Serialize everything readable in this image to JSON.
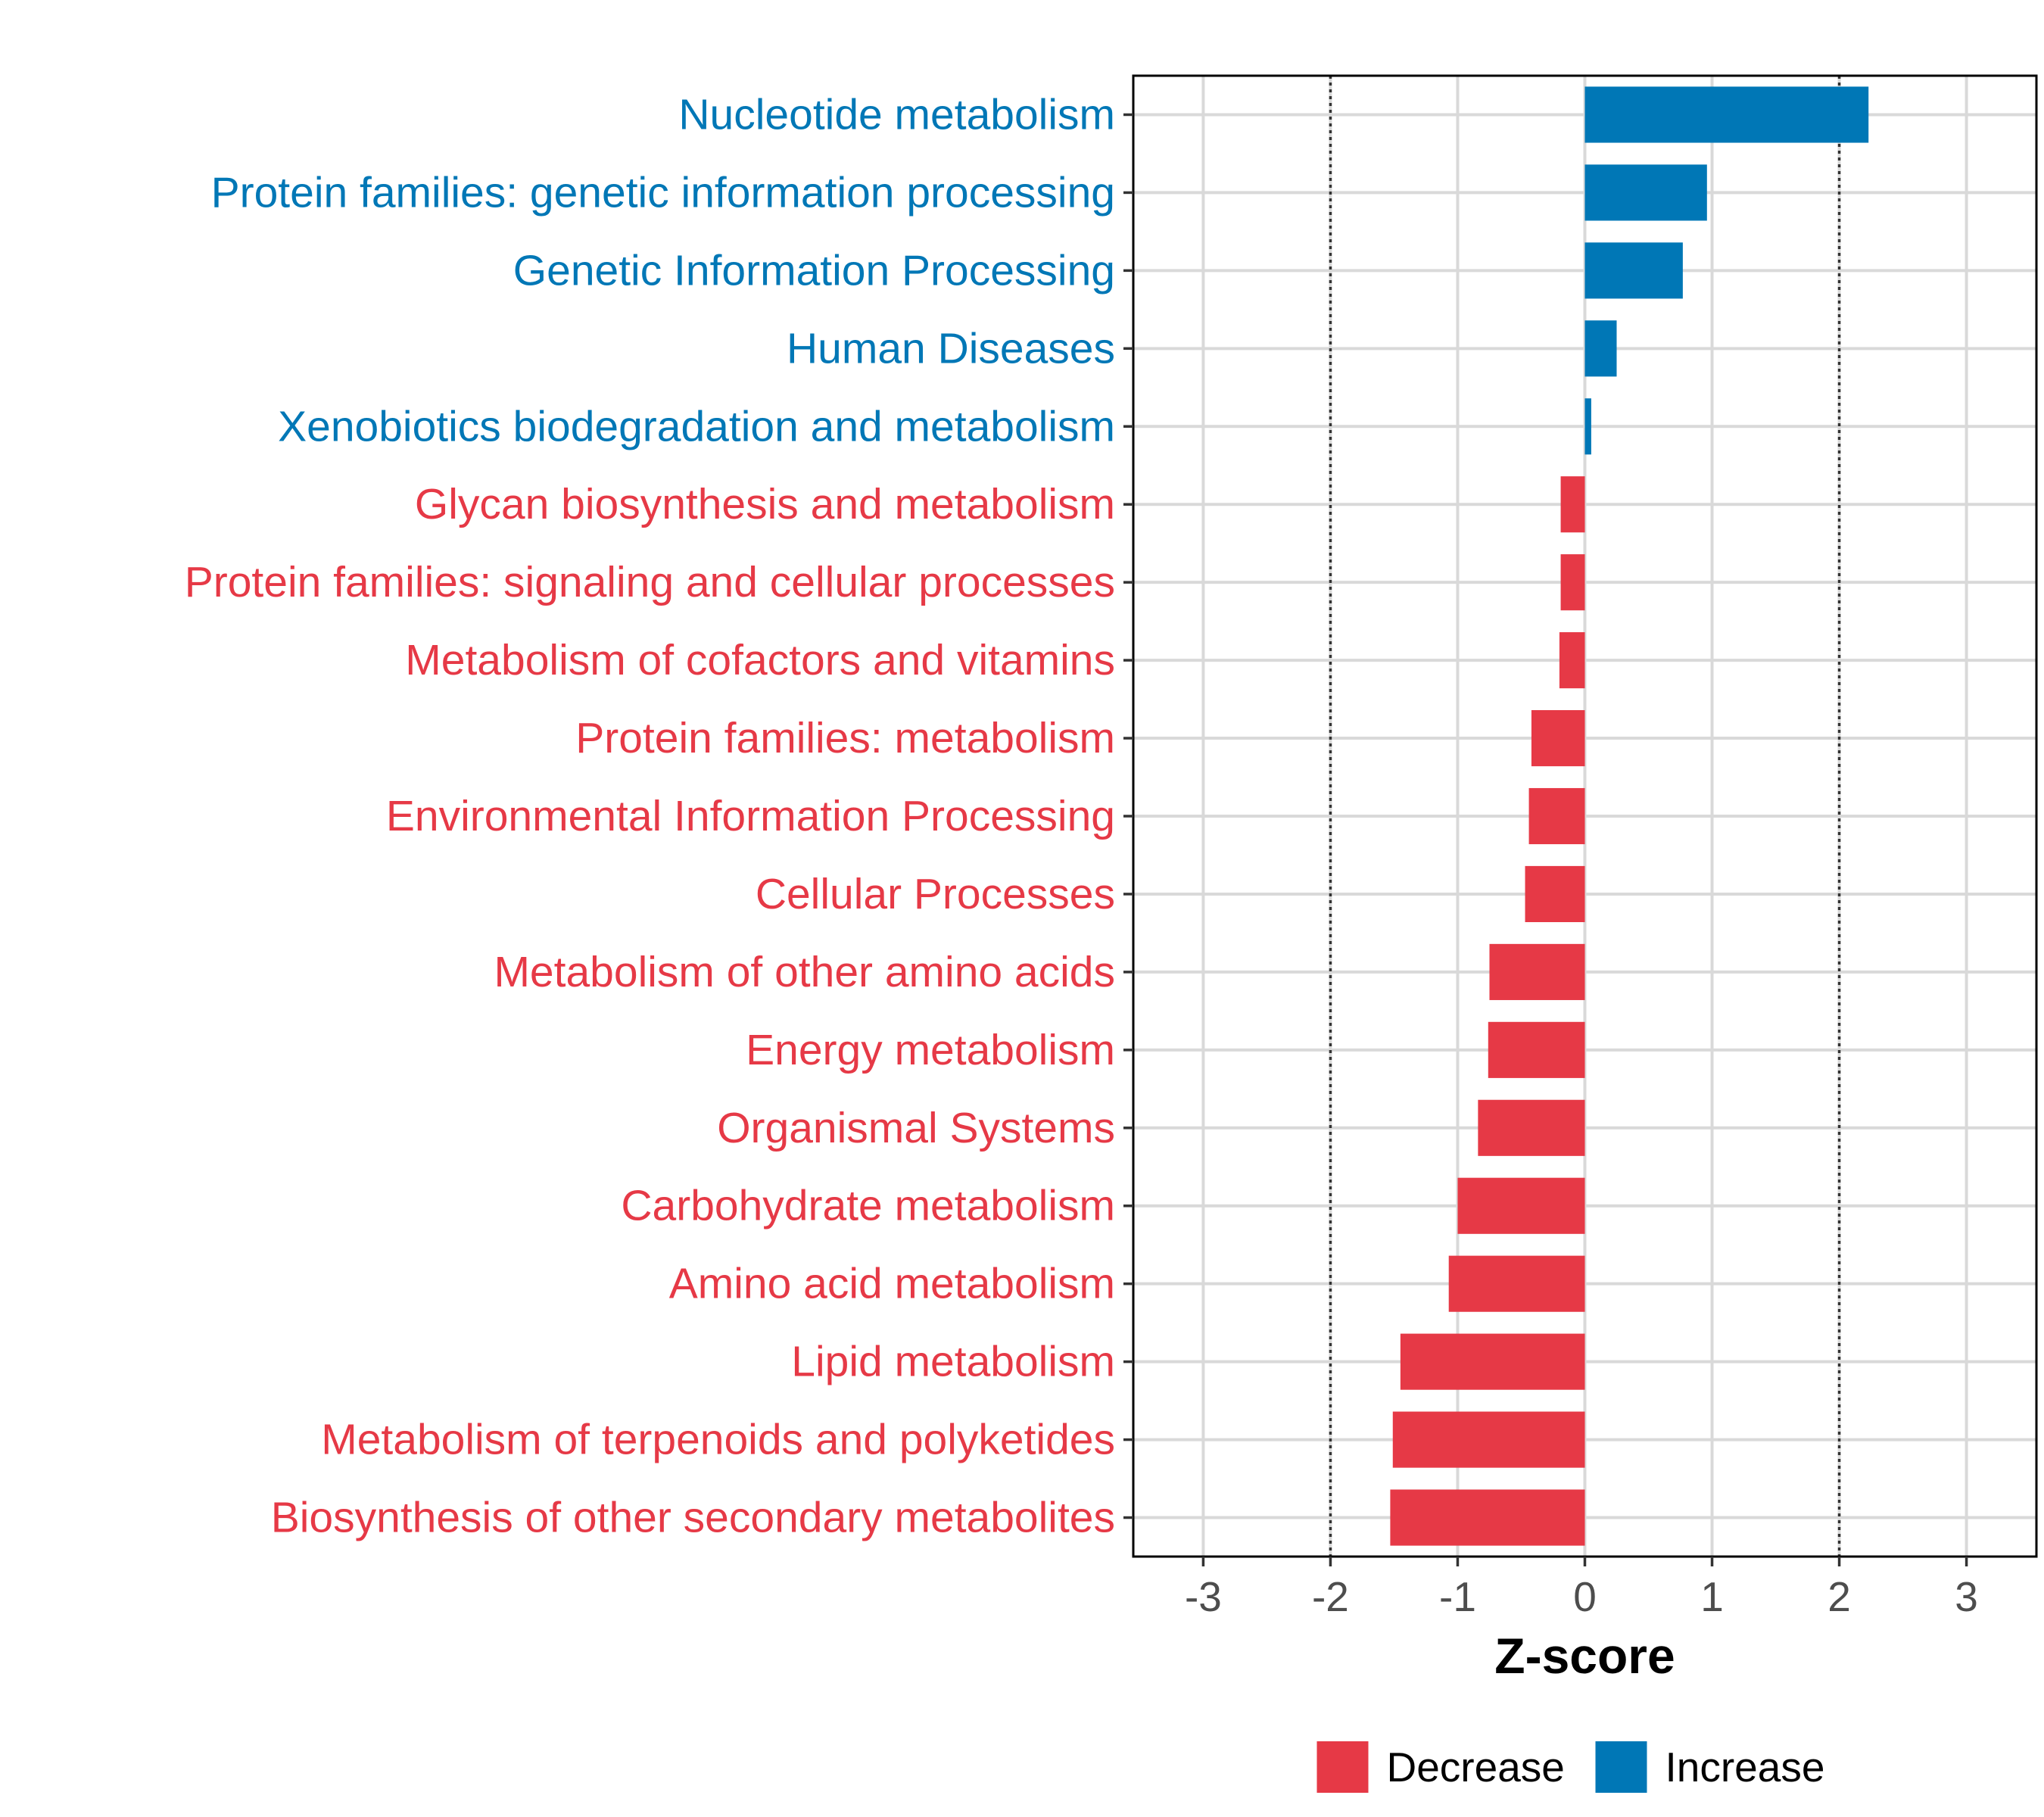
{
  "chart_data": {
    "type": "bar",
    "orientation": "horizontal",
    "categories": [
      "Nucleotide metabolism",
      "Protein families: genetic information processing",
      "Genetic Information Processing",
      "Human Diseases",
      "Xenobiotics biodegradation and metabolism",
      "Glycan biosynthesis and metabolism",
      "Protein families: signaling and cellular processes",
      "Metabolism of cofactors and vitamins",
      "Protein families: metabolism",
      "Environmental Information Processing",
      "Cellular Processes",
      "Metabolism of other amino acids",
      "Energy metabolism",
      "Organismal Systems",
      "Carbohydrate metabolism",
      "Amino acid metabolism",
      "Lipid metabolism",
      "Metabolism of terpenoids and polyketides",
      "Biosynthesis of other secondary metabolites"
    ],
    "values": [
      2.23,
      0.96,
      0.77,
      0.25,
      0.05,
      -0.19,
      -0.19,
      -0.2,
      -0.42,
      -0.44,
      -0.47,
      -0.75,
      -0.76,
      -0.84,
      -1.0,
      -1.07,
      -1.45,
      -1.51,
      -1.53
    ],
    "groups": [
      "Increase",
      "Increase",
      "Increase",
      "Increase",
      "Increase",
      "Decrease",
      "Decrease",
      "Decrease",
      "Decrease",
      "Decrease",
      "Decrease",
      "Decrease",
      "Decrease",
      "Decrease",
      "Decrease",
      "Decrease",
      "Decrease",
      "Decrease",
      "Decrease"
    ],
    "xlabel": "Z-score",
    "ylabel": "",
    "xlim": [
      -3.55,
      3.55
    ],
    "xticks": [
      -3,
      -2,
      -1,
      0,
      1,
      2,
      3
    ],
    "xtick_labels": [
      "-3",
      "-2",
      "-1",
      "0",
      "1",
      "2",
      "3"
    ],
    "reference_lines": [
      -2,
      2
    ],
    "grid": true,
    "legend": {
      "position": "bottom",
      "entries": [
        {
          "name": "Decrease",
          "color": "#E63946"
        },
        {
          "name": "Increase",
          "color": "#0077B6"
        }
      ]
    },
    "colors": {
      "Decrease": "#E63946",
      "Increase": "#0077B6"
    }
  }
}
